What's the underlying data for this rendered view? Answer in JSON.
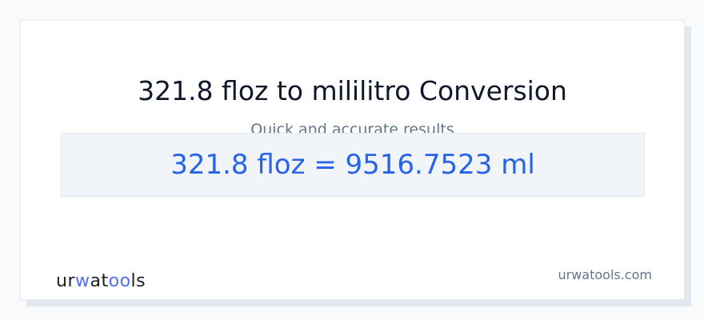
{
  "title": "321.8 floz to mililitro Conversion",
  "subtitle": "Quick and accurate results",
  "result": "321.8 floz = 9516.7523 ml",
  "logo": {
    "text": "urwatools",
    "part1": "ur",
    "part2": "w",
    "part3": "at",
    "part4": "oo",
    "part5": "ls",
    "accent": "#4f6ef7"
  },
  "domain": "urwatools.com",
  "colors": {
    "result_text": "#2563eb",
    "background": "#f8fafc"
  }
}
